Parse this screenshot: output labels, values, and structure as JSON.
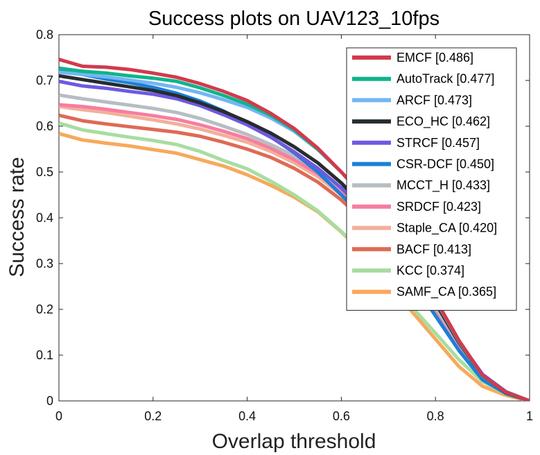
{
  "chart_data": {
    "type": "line",
    "title": "Success plots on UAV123_10fps",
    "xlabel": "Overlap threshold",
    "ylabel": "Success rate",
    "xlim": [
      0,
      1
    ],
    "ylim": [
      0,
      0.8
    ],
    "xticks": [
      "0",
      "0.2",
      "0.4",
      "0.6",
      "0.8",
      "1"
    ],
    "yticks": [
      "0",
      "0.1",
      "0.2",
      "0.3",
      "0.4",
      "0.5",
      "0.6",
      "0.7",
      "0.8"
    ],
    "grid": false,
    "legend_position": "top-right",
    "x": [
      0,
      0.05,
      0.1,
      0.15,
      0.2,
      0.25,
      0.3,
      0.35,
      0.4,
      0.45,
      0.5,
      0.55,
      0.6,
      0.65,
      0.7,
      0.75,
      0.8,
      0.85,
      0.9,
      0.95,
      1.0
    ],
    "series": [
      {
        "name": "SAMF_CA [0.365]",
        "color": "#F7A95B",
        "values": [
          0.584,
          0.57,
          0.563,
          0.557,
          0.549,
          0.541,
          0.527,
          0.513,
          0.494,
          0.471,
          0.445,
          0.413,
          0.369,
          0.32,
          0.255,
          0.195,
          0.135,
          0.075,
          0.032,
          0.012,
          0.0
        ]
      },
      {
        "name": "KCC [0.374]",
        "color": "#A8DDA0",
        "values": [
          0.607,
          0.592,
          0.584,
          0.576,
          0.569,
          0.56,
          0.545,
          0.525,
          0.507,
          0.48,
          0.45,
          0.415,
          0.37,
          0.32,
          0.262,
          0.205,
          0.148,
          0.09,
          0.042,
          0.016,
          0.0
        ]
      },
      {
        "name": "BACF [0.413]",
        "color": "#DE6B55",
        "values": [
          0.624,
          0.612,
          0.605,
          0.599,
          0.593,
          0.587,
          0.578,
          0.565,
          0.55,
          0.532,
          0.508,
          0.478,
          0.439,
          0.39,
          0.33,
          0.265,
          0.195,
          0.118,
          0.052,
          0.018,
          0.0
        ]
      },
      {
        "name": "Staple_CA [0.420]",
        "color": "#F2B09A",
        "values": [
          0.643,
          0.636,
          0.63,
          0.622,
          0.614,
          0.605,
          0.594,
          0.58,
          0.565,
          0.545,
          0.52,
          0.49,
          0.45,
          0.4,
          0.338,
          0.27,
          0.198,
          0.12,
          0.052,
          0.018,
          0.0
        ]
      },
      {
        "name": "SRDCF [0.423]",
        "color": "#F77DA0",
        "values": [
          0.647,
          0.643,
          0.637,
          0.63,
          0.623,
          0.615,
          0.603,
          0.589,
          0.573,
          0.552,
          0.527,
          0.496,
          0.455,
          0.404,
          0.342,
          0.273,
          0.2,
          0.121,
          0.052,
          0.018,
          0.0
        ]
      },
      {
        "name": "MCCT_H [0.433]",
        "color": "#B6BEC2",
        "values": [
          0.668,
          0.66,
          0.653,
          0.646,
          0.639,
          0.63,
          0.617,
          0.6,
          0.582,
          0.56,
          0.535,
          0.505,
          0.465,
          0.413,
          0.35,
          0.282,
          0.205,
          0.125,
          0.054,
          0.019,
          0.0
        ]
      },
      {
        "name": "CSR-DCF [0.450]",
        "color": "#1C7FD8",
        "values": [
          0.72,
          0.713,
          0.703,
          0.695,
          0.685,
          0.672,
          0.655,
          0.633,
          0.607,
          0.577,
          0.542,
          0.5,
          0.45,
          0.398,
          0.333,
          0.262,
          0.186,
          0.11,
          0.046,
          0.016,
          0.0
        ]
      },
      {
        "name": "STRCF [0.457]",
        "color": "#6E5AE0",
        "values": [
          0.698,
          0.688,
          0.683,
          0.676,
          0.67,
          0.66,
          0.645,
          0.625,
          0.603,
          0.576,
          0.544,
          0.508,
          0.465,
          0.414,
          0.354,
          0.288,
          0.215,
          0.13,
          0.058,
          0.02,
          0.0
        ]
      },
      {
        "name": "ECO_HC [0.462]",
        "color": "#262C2F",
        "values": [
          0.71,
          0.702,
          0.694,
          0.686,
          0.678,
          0.667,
          0.651,
          0.632,
          0.61,
          0.585,
          0.555,
          0.52,
          0.476,
          0.423,
          0.359,
          0.29,
          0.214,
          0.127,
          0.055,
          0.018,
          0.0
        ]
      },
      {
        "name": "ARCF [0.473]",
        "color": "#74B6F3",
        "values": [
          0.718,
          0.713,
          0.708,
          0.701,
          0.694,
          0.685,
          0.673,
          0.658,
          0.641,
          0.618,
          0.589,
          0.549,
          0.5,
          0.443,
          0.375,
          0.3,
          0.22,
          0.13,
          0.055,
          0.019,
          0.0
        ]
      },
      {
        "name": "AutoTrack [0.477]",
        "color": "#10B48A",
        "values": [
          0.727,
          0.72,
          0.716,
          0.71,
          0.705,
          0.698,
          0.684,
          0.667,
          0.648,
          0.624,
          0.592,
          0.55,
          0.5,
          0.443,
          0.376,
          0.302,
          0.222,
          0.131,
          0.055,
          0.019,
          0.0
        ]
      },
      {
        "name": "EMCF [0.486]",
        "color": "#D23A4D",
        "values": [
          0.746,
          0.731,
          0.729,
          0.724,
          0.716,
          0.707,
          0.693,
          0.676,
          0.656,
          0.628,
          0.595,
          0.552,
          0.5,
          0.444,
          0.378,
          0.304,
          0.222,
          0.132,
          0.056,
          0.019,
          0.0
        ]
      }
    ],
    "legend_order": [
      11,
      10,
      9,
      8,
      7,
      6,
      5,
      4,
      3,
      2,
      1,
      0
    ]
  }
}
